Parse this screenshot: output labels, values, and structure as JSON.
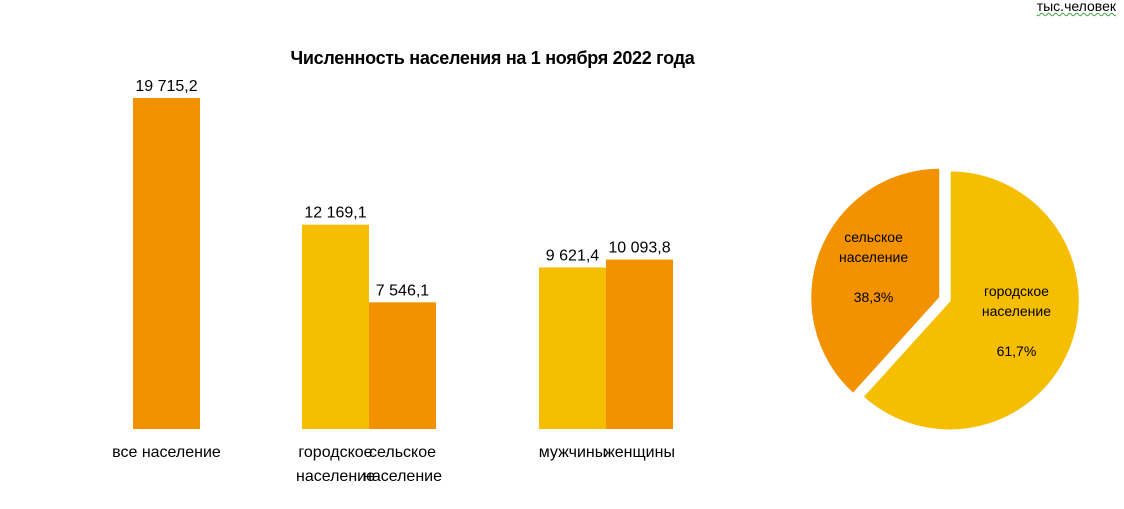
{
  "units": "тыс.человек",
  "chart_data": [
    {
      "type": "bar",
      "title": "Численность населения на 1 ноября 2022 года",
      "groups": [
        {
          "bars": [
            {
              "label": "все население",
              "value": 19715.2,
              "display": "19 715,2",
              "color": "#F39200"
            }
          ]
        },
        {
          "bars": [
            {
              "label_lines": [
                "городское",
                "население"
              ],
              "value": 12169.1,
              "display": "12 169,1",
              "color": "#F5BE00"
            },
            {
              "label_lines": [
                "сельское",
                "население"
              ],
              "value": 7546.1,
              "display": "7 546,1",
              "color": "#F39200"
            }
          ]
        },
        {
          "bars": [
            {
              "label": "мужчины",
              "value": 9621.4,
              "display": "9 621,4",
              "color": "#F5BE00"
            },
            {
              "label": "женщины",
              "value": 10093.8,
              "display": "10 093,8",
              "color": "#F39200"
            }
          ]
        }
      ],
      "ylim": [
        0,
        22000
      ],
      "grid": false,
      "legend": "none"
    },
    {
      "type": "pie",
      "slices": [
        {
          "label_lines": [
            "сельское",
            "население"
          ],
          "value": 38.3,
          "display": "38,3%",
          "color": "#F39200"
        },
        {
          "label_lines": [
            "городское",
            "население"
          ],
          "value": 61.7,
          "display": "61,7%",
          "color": "#F5BE00"
        }
      ]
    }
  ]
}
